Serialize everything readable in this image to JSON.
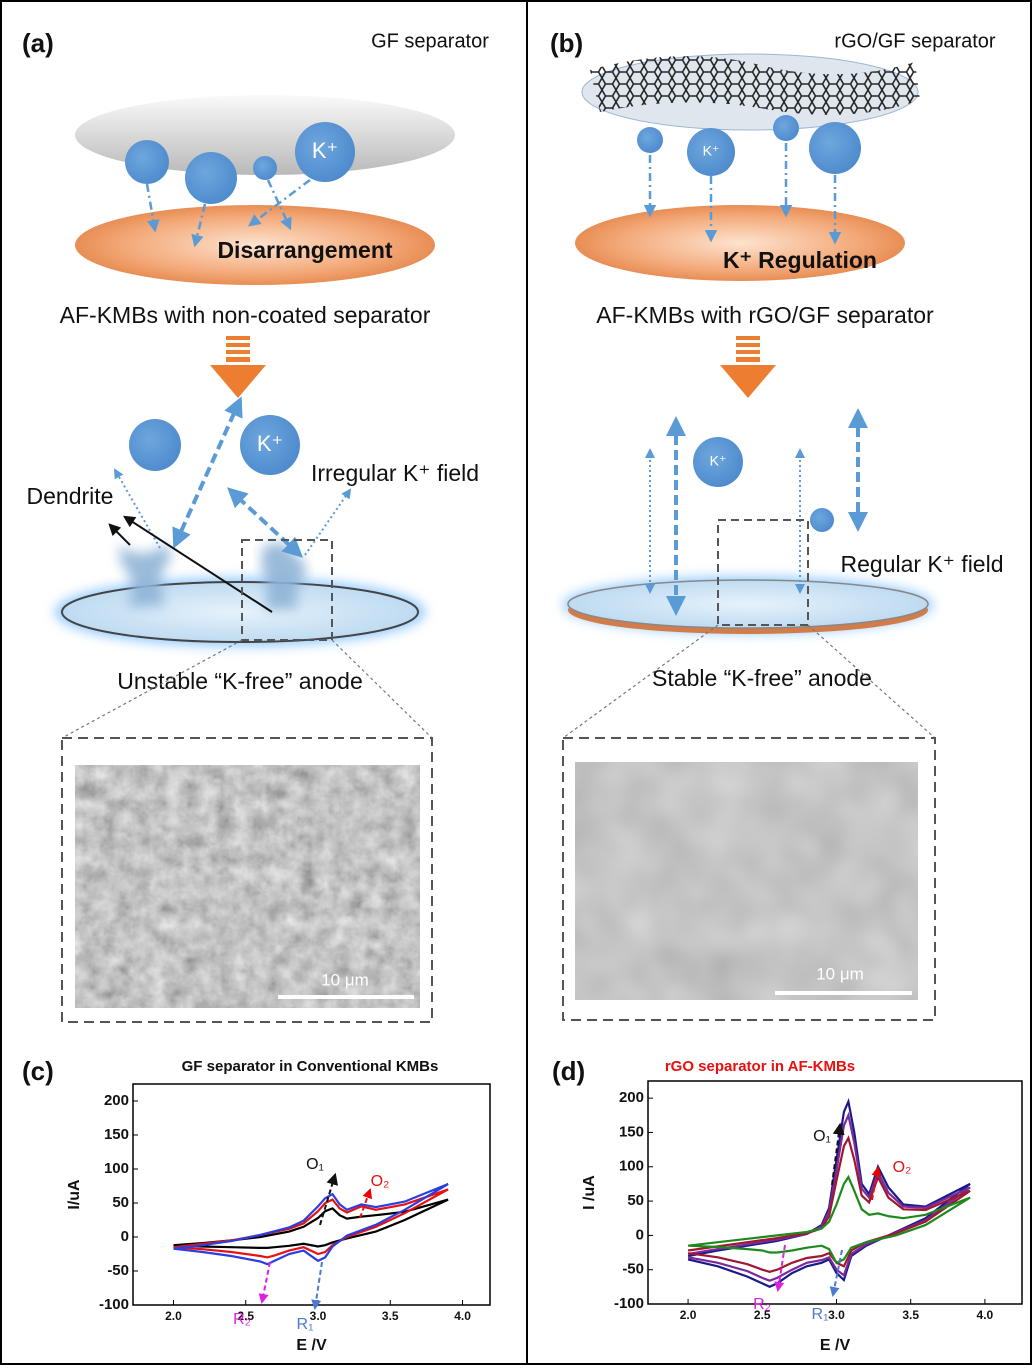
{
  "panels": [
    {
      "label": "(a)",
      "title": "GF separator",
      "ion": "K⁺",
      "top_label": "Disarrangement",
      "caption": "AF-KMBs with non-coated  separator",
      "field_label": "Irregular K⁺ field",
      "dendrite_label": "Dendrite",
      "anode_label": "Unstable “K-free” anode",
      "scale_bar": "10 μm"
    },
    {
      "label": "(b)",
      "title": "rGO/GF separator",
      "ion": "K⁺",
      "top_label": "K⁺ Regulation",
      "caption": "AF-KMBs with rGO/GF separator",
      "field_label": "Regular K⁺ field",
      "anode_label": "Stable “K-free” anode",
      "scale_bar": "10 μm"
    }
  ],
  "chart_data": [
    {
      "type": "line",
      "panel_label": "(c)",
      "title": "GF separator in Conventional KMBs",
      "title_color": "#111111",
      "x_label": "E /V",
      "y_label": "I/uA",
      "xlim": [
        1.72,
        4.19
      ],
      "ylim": [
        -100,
        225
      ],
      "xticks": [
        {
          "value": 2,
          "label": "2.0"
        },
        2.5,
        {
          "value": 3,
          "label": "3.0"
        },
        3.5,
        {
          "value": 4,
          "label": "4.0"
        }
      ],
      "yticks": [
        -100,
        -50,
        0,
        50,
        100,
        150,
        200
      ],
      "x": [
        2.0,
        2.2,
        2.4,
        2.6,
        2.8,
        2.9,
        3.0,
        3.05,
        3.1,
        3.15,
        3.2,
        3.3,
        3.4,
        3.6,
        3.9,
        3.6,
        3.4,
        3.2,
        3.1,
        3.05,
        3.0,
        2.9,
        2.8,
        2.7,
        2.65,
        2.6,
        2.4,
        2.2,
        2.0
      ],
      "series": [
        {
          "color": "#000000",
          "values": [
            -12,
            -9,
            -5,
            0,
            8,
            15,
            28,
            38,
            42,
            32,
            27,
            30,
            32,
            37,
            55,
            25,
            8,
            -2,
            -8,
            -12,
            -14,
            -10,
            -13,
            -15,
            -16,
            -16,
            -15,
            -14,
            -12
          ]
        },
        {
          "color": "#e81010",
          "values": [
            -15,
            -10,
            -5,
            3,
            12,
            20,
            38,
            50,
            55,
            42,
            36,
            45,
            40,
            48,
            70,
            35,
            15,
            0,
            -12,
            -22,
            -25,
            -15,
            -20,
            -27,
            -30,
            -28,
            -22,
            -18,
            -15
          ]
        },
        {
          "color": "#2b3ee0",
          "values": [
            -17,
            -12,
            -6,
            3,
            14,
            24,
            45,
            57,
            63,
            48,
            40,
            48,
            44,
            52,
            78,
            40,
            18,
            2,
            -14,
            -30,
            -35,
            -20,
            -25,
            -35,
            -40,
            -36,
            -28,
            -22,
            -17
          ]
        }
      ],
      "annotations": [
        {
          "text": "O₁",
          "color": "#111111"
        },
        {
          "text": "O₂",
          "color": "#e81010"
        },
        {
          "text": "R₁",
          "color": "#4a7bd0"
        },
        {
          "text": "R₂",
          "color": "#e020e0"
        }
      ]
    },
    {
      "type": "line",
      "panel_label": "(d)",
      "title": "rGO separator in AF-KMBs",
      "title_color": "#e81010",
      "x_label": "E /V",
      "y_label": "I /uA",
      "xlim": [
        1.73,
        4.25
      ],
      "ylim": [
        -100,
        225
      ],
      "xticks": [
        {
          "value": 2,
          "label": "2.0"
        },
        2.5,
        {
          "value": 3,
          "label": "3.0"
        },
        3.5,
        {
          "value": 4,
          "label": "4.0"
        }
      ],
      "yticks": [
        -100,
        -50,
        0,
        50,
        100,
        150,
        200
      ],
      "x": [
        2.0,
        2.2,
        2.4,
        2.6,
        2.8,
        2.9,
        2.95,
        3.0,
        3.05,
        3.08,
        3.12,
        3.17,
        3.22,
        3.28,
        3.35,
        3.45,
        3.6,
        3.9,
        3.6,
        3.4,
        3.2,
        3.1,
        3.05,
        3.0,
        2.95,
        2.9,
        2.8,
        2.7,
        2.6,
        2.55,
        2.5,
        2.4,
        2.2,
        2.0
      ],
      "series": [
        {
          "color": "#1a1a8c",
          "values": [
            -30,
            -22,
            -15,
            -8,
            2,
            15,
            40,
            110,
            180,
            195,
            150,
            75,
            60,
            100,
            70,
            45,
            42,
            75,
            25,
            5,
            -15,
            -30,
            -65,
            -55,
            -35,
            -40,
            -45,
            -55,
            -70,
            -75,
            -70,
            -60,
            -45,
            -35
          ]
        },
        {
          "color": "#7a2a9a",
          "values": [
            -27,
            -20,
            -13,
            -6,
            2,
            13,
            35,
            95,
            160,
            175,
            135,
            68,
            55,
            92,
            62,
            42,
            40,
            70,
            22,
            4,
            -13,
            -27,
            -58,
            -50,
            -32,
            -36,
            -40,
            -50,
            -62,
            -66,
            -62,
            -52,
            -40,
            -32
          ]
        },
        {
          "color": "#a01830",
          "values": [
            -22,
            -16,
            -10,
            -4,
            3,
            10,
            28,
            80,
            130,
            142,
            110,
            58,
            48,
            85,
            55,
            38,
            37,
            65,
            20,
            3,
            -10,
            -22,
            -45,
            -40,
            -26,
            -30,
            -33,
            -40,
            -50,
            -53,
            -50,
            -42,
            -32,
            -26
          ]
        },
        {
          "color": "#1e8a1e",
          "values": [
            -15,
            -10,
            -5,
            0,
            5,
            10,
            20,
            45,
            75,
            85,
            65,
            38,
            30,
            32,
            28,
            25,
            30,
            55,
            15,
            0,
            -10,
            -18,
            -35,
            -40,
            -20,
            -15,
            -18,
            -22,
            -25,
            -25,
            -22,
            -20,
            -17,
            -15
          ]
        }
      ],
      "annotations": [
        {
          "text": "O₁",
          "color": "#111111"
        },
        {
          "text": "O₂",
          "color": "#e81010"
        },
        {
          "text": "R₁",
          "color": "#4a7bd0"
        },
        {
          "text": "R₂",
          "color": "#e020e0"
        }
      ]
    }
  ]
}
